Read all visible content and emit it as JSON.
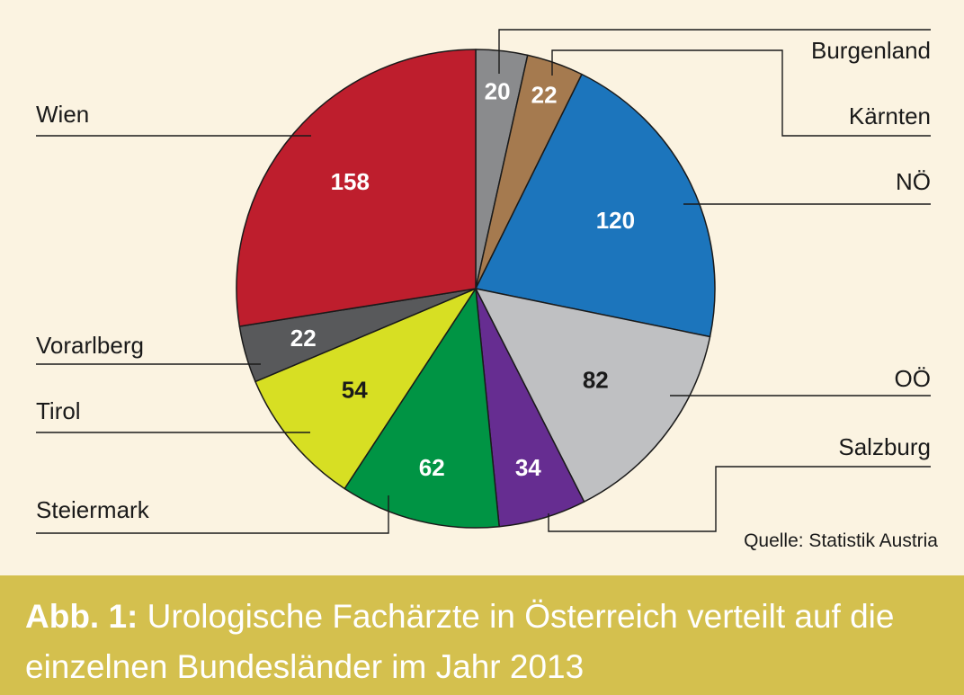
{
  "chart_data": {
    "type": "pie",
    "start_angle_deg": 0,
    "direction": "clockwise",
    "slices": [
      {
        "label": "Burgenland",
        "value": 20,
        "color": "#8a8b8d",
        "value_text_color": "#ffffff"
      },
      {
        "label": "Kärnten",
        "value": 22,
        "color": "#a57a4f",
        "value_text_color": "#ffffff"
      },
      {
        "label": "NÖ",
        "value": 120,
        "color": "#1c75bc",
        "value_text_color": "#ffffff"
      },
      {
        "label": "OÖ",
        "value": 82,
        "color": "#bfc0c2",
        "value_text_color": "#1a1a1a"
      },
      {
        "label": "Salzburg",
        "value": 34,
        "color": "#662d91",
        "value_text_color": "#ffffff"
      },
      {
        "label": "Steiermark",
        "value": 62,
        "color": "#009444",
        "value_text_color": "#ffffff"
      },
      {
        "label": "Tirol",
        "value": 54,
        "color": "#d7df23",
        "value_text_color": "#1a1a1a"
      },
      {
        "label": "Vorarlberg",
        "value": 22,
        "color": "#58595b",
        "value_text_color": "#ffffff"
      },
      {
        "label": "Wien",
        "value": 158,
        "color": "#be1e2d",
        "value_text_color": "#ffffff"
      }
    ],
    "source": "Quelle: Statistik Austria"
  },
  "caption": {
    "prefix": "Abb. 1:",
    "text": "Urologische Fachärzte in Österreich verteilt auf die einzelnen Bundesländer im Jahr 2013"
  },
  "colors": {
    "background": "#fbf3e1",
    "caption_bar": "#d4c04e",
    "caption_text": "#ffffff"
  }
}
